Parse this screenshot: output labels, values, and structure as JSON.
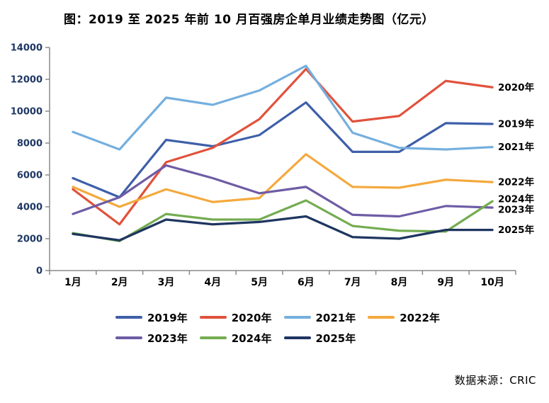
{
  "title": "图：2019 至 2025 年前 10 月百强房企单月业绩走势图（亿元）",
  "source": "数据来源：CRIC",
  "chart_data": {
    "type": "line",
    "title": "图：2019 至 2025 年前 10 月百强房企单月业绩走势图（亿元）",
    "xlabel": "",
    "ylabel": "",
    "unit": "亿元",
    "categories": [
      "1月",
      "2月",
      "3月",
      "4月",
      "5月",
      "6月",
      "7月",
      "8月",
      "9月",
      "10月"
    ],
    "series": [
      {
        "name": "2019年",
        "color": "#3E5FA9",
        "values": [
          5800,
          4600,
          8200,
          7800,
          8500,
          10550,
          7450,
          7450,
          9250,
          9200
        ]
      },
      {
        "name": "2020年",
        "color": "#E0523C",
        "values": [
          5100,
          2900,
          6800,
          7700,
          9500,
          12650,
          9350,
          9700,
          11900,
          11500
        ]
      },
      {
        "name": "2021年",
        "color": "#75AFDE",
        "values": [
          8700,
          7600,
          10850,
          10400,
          11300,
          12850,
          8650,
          7700,
          7600,
          7750
        ]
      },
      {
        "name": "2022年",
        "color": "#F4A93D",
        "values": [
          5250,
          4000,
          5100,
          4300,
          4550,
          7300,
          5250,
          5200,
          5700,
          5550
        ]
      },
      {
        "name": "2023年",
        "color": "#6E5CA5",
        "values": [
          3550,
          4600,
          6600,
          5800,
          4850,
          5250,
          3500,
          3400,
          4050,
          3950
        ]
      },
      {
        "name": "2024年",
        "color": "#74AC52",
        "values": [
          2350,
          1850,
          3550,
          3200,
          3200,
          4400,
          2800,
          2500,
          2450,
          4350
        ]
      },
      {
        "name": "2025年",
        "color": "#1E3560",
        "values": [
          2300,
          1900,
          3200,
          2900,
          3050,
          3400,
          2100,
          2000,
          2550,
          2550
        ]
      }
    ],
    "ylim": [
      0,
      14000
    ],
    "ytick_step": 2000,
    "yticks": [
      0,
      2000,
      4000,
      6000,
      8000,
      10000,
      12000,
      14000
    ],
    "grid": false,
    "end_labels": true,
    "legend_position": "bottom",
    "axis_color": "#8A8A8A",
    "ytick_label_color": "#1F3864",
    "xtick_label_color": "#000000"
  }
}
